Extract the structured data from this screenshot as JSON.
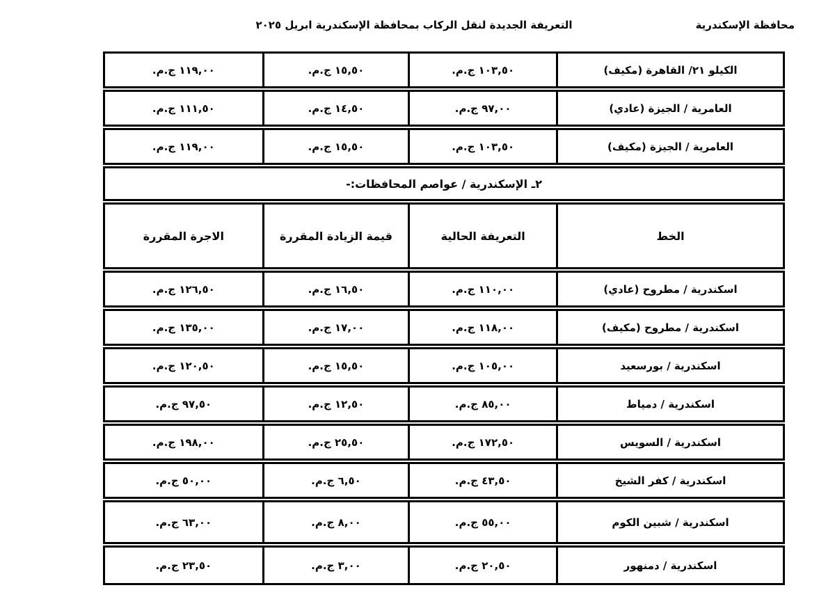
{
  "page_header": {
    "org": "محافظة الإسكندرية",
    "title": "التعريفة الجديدة لنقل الركاب بمحافظة الإسكندرية ابريل ٢٠٢٥"
  },
  "table": {
    "headers": {
      "line": "الخط",
      "current": "التعريفة الحالية",
      "increase": "قيمة الزيادة المقررة",
      "approved": "الاجرة المقررة"
    },
    "continued_rows": [
      {
        "line": "الكيلو ٢١/ القاهرة (مكيف)",
        "current": "١٠٣,٥٠ ج.م.",
        "increase": "١٥,٥٠ ج.م.",
        "approved": "١١٩,٠٠ ج.م."
      },
      {
        "line": "العامرية / الجيزة (عادي)",
        "current": "٩٧,٠٠ ج.م.",
        "increase": "١٤,٥٠ ج.م.",
        "approved": "١١١,٥٠ ج.م."
      },
      {
        "line": "العامرية / الجيزة (مكيف)",
        "current": "١٠٣,٥٠ ج.م.",
        "increase": "١٥,٥٠ ج.م.",
        "approved": "١١٩,٠٠ ج.م."
      }
    ],
    "section_title": "٢ـ الإسكندرية / عواصم المحافظات:-",
    "rows": [
      {
        "line": "اسكندرية / مطروح (عادي)",
        "current": "١١٠,٠٠ ج.م.",
        "increase": "١٦,٥٠ ج.م.",
        "approved": "١٢٦,٥٠ ج.م."
      },
      {
        "line": "اسكندرية / مطروح (مكيف)",
        "current": "١١٨,٠٠ ج.م.",
        "increase": "١٧,٠٠ ج.م.",
        "approved": "١٣٥,٠٠ ج.م."
      },
      {
        "line": "اسكندرية / بورسعيد",
        "current": "١٠٥,٠٠ ج.م.",
        "increase": "١٥,٥٠ ج.م.",
        "approved": "١٢٠,٥٠ ج.م."
      },
      {
        "line": "اسكندرية / دمياط",
        "current": "٨٥,٠٠ ج.م.",
        "increase": "١٢,٥٠ ج.م.",
        "approved": "٩٧,٥٠ ج.م."
      },
      {
        "line": "اسكندرية / السويس",
        "current": "١٧٢,٥٠ ج.م.",
        "increase": "٢٥,٥٠ ج.م.",
        "approved": "١٩٨,٠٠ ج.م."
      },
      {
        "line": "اسكندرية / كفر الشيخ",
        "current": "٤٣,٥٠ ج.م.",
        "increase": "٦,٥٠ ج.م.",
        "approved": "٥٠,٠٠ ج.م."
      },
      {
        "line": "اسكندرية / شبين الكوم",
        "current": "٥٥,٠٠ ج.م.",
        "increase": "٨,٠٠ ج.م.",
        "approved": "٦٣,٠٠ ج.م."
      },
      {
        "line": "اسكندرية / دمنهور",
        "current": "٢٠,٥٠ ج.م.",
        "increase": "٣,٠٠ ج.م.",
        "approved": "٢٣,٥٠ ج.م."
      }
    ]
  }
}
